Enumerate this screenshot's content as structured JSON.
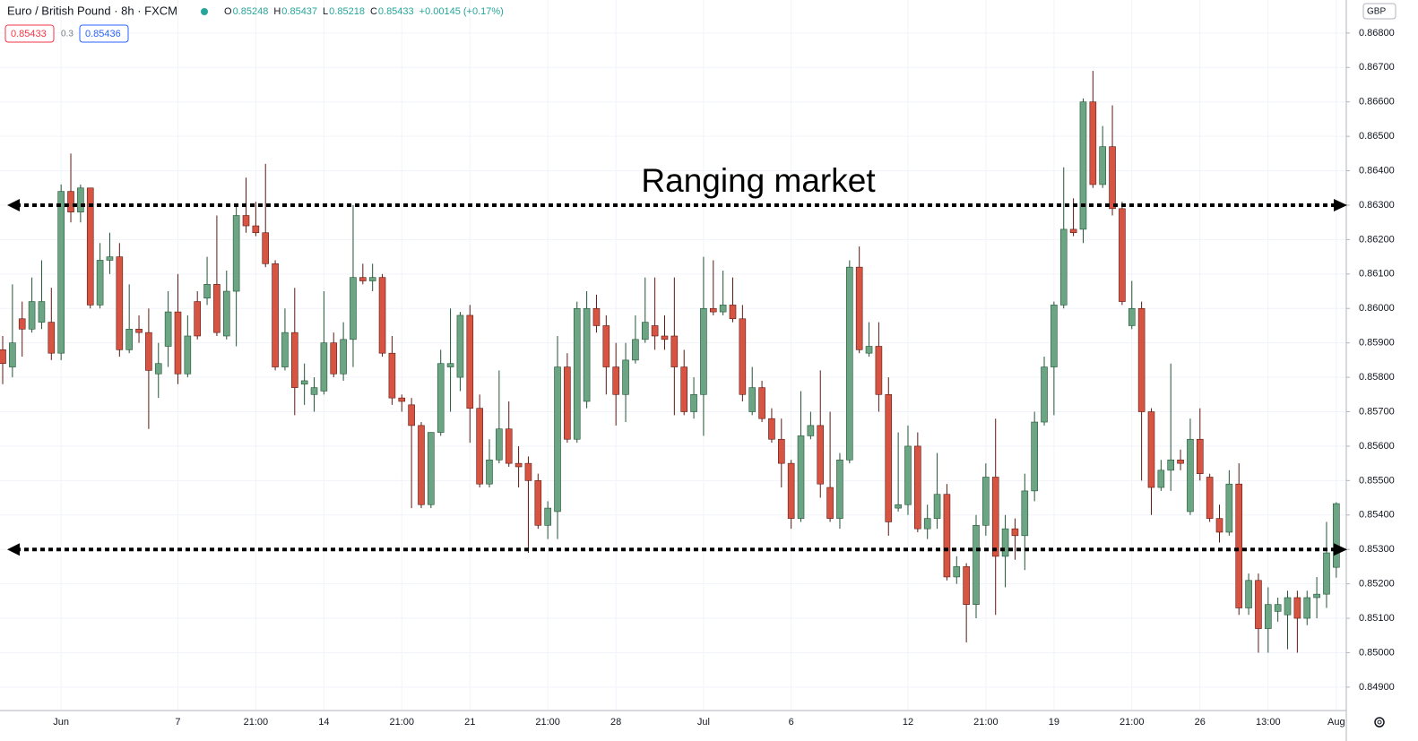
{
  "chart_data": {
    "type": "candlestick",
    "title": "Euro / British Pound · 8h · FXCM",
    "legend_labels": [
      "O",
      "H",
      "L",
      "C"
    ],
    "change": "+0.00145 (+0.17%)",
    "sell": 0.85433,
    "spread": 0.3,
    "buy": 0.85436,
    "currency": "GBP",
    "annotation": "Ranging market",
    "levels": [
      0.863,
      0.853
    ],
    "up_color": "#6ba583",
    "up_border": "#225437",
    "down_color": "#d75442",
    "down_border": "#5b1a13",
    "categories": [
      null,
      null,
      null,
      null,
      null,
      null,
      "Jun",
      null,
      null,
      null,
      null,
      null,
      null,
      null,
      null,
      null,
      null,
      null,
      "7",
      null,
      null,
      null,
      null,
      null,
      null,
      null,
      "21:00",
      null,
      null,
      null,
      null,
      null,
      null,
      "14",
      null,
      null,
      null,
      null,
      null,
      null,
      null,
      "21:00",
      null,
      null,
      null,
      null,
      null,
      null,
      "21",
      null,
      null,
      null,
      null,
      null,
      null,
      null,
      "21:00",
      null,
      null,
      null,
      null,
      null,
      null,
      "28",
      null,
      null,
      null,
      null,
      null,
      null,
      null,
      null,
      "Jul",
      null,
      null,
      null,
      null,
      null,
      null,
      null,
      null,
      "6",
      null,
      null,
      null,
      null,
      null,
      null,
      null,
      null,
      null,
      null,
      null,
      "12",
      null,
      null,
      null,
      null,
      null,
      null,
      null,
      "21:00",
      null,
      null,
      null,
      null,
      null,
      null,
      "19",
      null,
      null,
      null,
      null,
      null,
      null,
      null,
      "21:00",
      null,
      null,
      null,
      null,
      null,
      null,
      "26",
      null,
      null,
      null,
      null,
      null,
      null,
      "13:00",
      null,
      null,
      null,
      null,
      null,
      null,
      "Aug"
    ],
    "open": [
      0.8588,
      0.8583,
      0.8597,
      0.8594,
      0.8596,
      0.8596,
      0.8587,
      0.8634,
      0.8628,
      0.8635,
      0.8601,
      0.8614,
      0.8615,
      0.8588,
      0.8594,
      0.8593,
      0.8581,
      0.8589,
      0.8599,
      0.8581,
      0.8602,
      0.8603,
      0.8607,
      0.8592,
      0.8605,
      0.8627,
      0.8624,
      0.8622,
      0.8613,
      0.8583,
      0.8593,
      0.8578,
      0.8575,
      0.8576,
      0.859,
      0.8581,
      0.8591,
      0.8609,
      0.8608,
      0.8609,
      0.8587,
      0.8574,
      0.8572,
      0.8566,
      0.8543,
      0.8564,
      0.8583,
      0.858,
      0.8598,
      0.8571,
      0.8549,
      0.8556,
      0.8565,
      0.8555,
      0.8555,
      0.855,
      0.8537,
      0.8541,
      0.8583,
      0.8562,
      0.8573,
      0.86,
      0.8595,
      0.8583,
      0.8575,
      0.8585,
      0.8591,
      0.8595,
      0.8592,
      0.8592,
      0.8583,
      0.857,
      0.8575,
      0.86,
      0.8599,
      0.8601,
      0.8597,
      0.857,
      0.8577,
      0.8568,
      0.8562,
      0.8555,
      0.8539,
      0.8563,
      0.8566,
      0.8548,
      0.8539,
      0.8556,
      0.8612,
      0.8587,
      0.8589,
      0.8575,
      0.8542,
      0.8543,
      0.856,
      0.8536,
      0.8539,
      0.8546,
      0.8522,
      0.8525,
      0.8514,
      0.8537,
      0.8551,
      0.8528,
      0.8536,
      0.8534,
      0.8547,
      0.8567,
      0.8583,
      0.8601,
      0.8623,
      0.8623,
      0.866,
      0.8636,
      0.8647,
      0.8629,
      0.8595,
      0.86,
      0.857,
      0.8548,
      0.8553,
      0.8556,
      0.8541,
      0.8562,
      0.8551,
      0.8539,
      0.8535,
      0.8549,
      0.8513,
      0.8521,
      0.8507,
      0.8512,
      0.8511,
      0.8516,
      0.851,
      0.8516,
      0.8517,
      0.85248
    ],
    "high": [
      0.8592,
      0.8607,
      0.8602,
      0.8609,
      0.8614,
      0.8606,
      0.8636,
      0.8645,
      0.8636,
      0.8635,
      0.8619,
      0.8622,
      0.8619,
      0.8607,
      0.8598,
      0.86,
      0.859,
      0.8605,
      0.861,
      0.8598,
      0.8605,
      0.8615,
      0.8627,
      0.8611,
      0.863,
      0.8638,
      0.8631,
      0.8642,
      0.8614,
      0.86,
      0.8606,
      0.8584,
      0.858,
      0.8605,
      0.8593,
      0.8596,
      0.863,
      0.8613,
      0.8613,
      0.861,
      0.8592,
      0.8575,
      0.8574,
      0.8567,
      0.8564,
      0.8588,
      0.86,
      0.8599,
      0.8601,
      0.8575,
      0.8562,
      0.8582,
      0.8573,
      0.856,
      0.8557,
      0.8552,
      0.8544,
      0.8592,
      0.8587,
      0.8602,
      0.8605,
      0.8604,
      0.8598,
      0.859,
      0.859,
      0.8598,
      0.8609,
      0.8609,
      0.8598,
      0.8609,
      0.8588,
      0.858,
      0.8615,
      0.8614,
      0.8611,
      0.8609,
      0.8601,
      0.8583,
      0.8579,
      0.8571,
      0.8568,
      0.8556,
      0.8576,
      0.857,
      0.8582,
      0.857,
      0.8558,
      0.8614,
      0.8618,
      0.8596,
      0.8596,
      0.858,
      0.8564,
      0.8566,
      0.8564,
      0.8543,
      0.8558,
      0.8549,
      0.8528,
      0.8526,
      0.854,
      0.8555,
      0.8568,
      0.854,
      0.8539,
      0.8552,
      0.857,
      0.8586,
      0.8602,
      0.8641,
      0.8632,
      0.8661,
      0.8669,
      0.8653,
      0.8659,
      0.8631,
      0.8608,
      0.8602,
      0.8571,
      0.8556,
      0.8584,
      0.8559,
      0.8568,
      0.8571,
      0.8552,
      0.8543,
      0.8553,
      0.8555,
      0.8523,
      0.8523,
      0.8519,
      0.8516,
      0.8518,
      0.8518,
      0.8518,
      0.8522,
      0.8538,
      0.85437
    ],
    "low": [
      0.8578,
      0.858,
      0.8586,
      0.8593,
      0.8594,
      0.8585,
      0.8585,
      0.8625,
      0.8625,
      0.86,
      0.86,
      0.861,
      0.8586,
      0.8587,
      0.859,
      0.8565,
      0.8574,
      0.8583,
      0.8578,
      0.858,
      0.8591,
      0.8601,
      0.8592,
      0.8591,
      0.8589,
      0.8622,
      0.8621,
      0.8612,
      0.8582,
      0.8582,
      0.8569,
      0.8572,
      0.857,
      0.8575,
      0.858,
      0.8579,
      0.8583,
      0.8607,
      0.8605,
      0.8586,
      0.8572,
      0.857,
      0.8542,
      0.8542,
      0.8542,
      0.8563,
      0.857,
      0.8576,
      0.8561,
      0.8548,
      0.8548,
      0.8555,
      0.8554,
      0.8548,
      0.8529,
      0.8536,
      0.8533,
      0.8533,
      0.8561,
      0.8561,
      0.8571,
      0.8593,
      0.8575,
      0.8566,
      0.8567,
      0.8584,
      0.859,
      0.8588,
      0.8588,
      0.8569,
      0.8569,
      0.8568,
      0.8563,
      0.8598,
      0.8598,
      0.8596,
      0.8573,
      0.8569,
      0.8567,
      0.8561,
      0.8548,
      0.8536,
      0.8538,
      0.8562,
      0.8545,
      0.8538,
      0.8536,
      0.8555,
      0.8587,
      0.8586,
      0.857,
      0.8534,
      0.8541,
      0.854,
      0.8535,
      0.8533,
      0.8536,
      0.8521,
      0.852,
      0.8503,
      0.851,
      0.8534,
      0.8511,
      0.8519,
      0.8527,
      0.8524,
      0.8544,
      0.8566,
      0.8569,
      0.86,
      0.8621,
      0.8619,
      0.8635,
      0.8635,
      0.8627,
      0.8601,
      0.8594,
      0.855,
      0.854,
      0.8547,
      0.8547,
      0.8553,
      0.854,
      0.855,
      0.8538,
      0.8532,
      0.8534,
      0.8511,
      0.8511,
      0.85,
      0.85,
      0.8509,
      0.8501,
      0.85,
      0.8508,
      0.851,
      0.8513,
      0.85218
    ],
    "close": [
      0.8584,
      0.859,
      0.8594,
      0.8602,
      0.8602,
      0.8587,
      0.8634,
      0.8628,
      0.8635,
      0.8601,
      0.8614,
      0.8615,
      0.8588,
      0.8594,
      0.8593,
      0.8582,
      0.8584,
      0.8599,
      0.8581,
      0.8592,
      0.8592,
      0.8607,
      0.8593,
      0.8605,
      0.8627,
      0.8624,
      0.8622,
      0.8613,
      0.8583,
      0.8593,
      0.8577,
      0.8579,
      0.8577,
      0.859,
      0.8581,
      0.8591,
      0.8609,
      0.8608,
      0.8609,
      0.8587,
      0.8574,
      0.8573,
      0.8566,
      0.8543,
      0.8564,
      0.8584,
      0.8584,
      0.8598,
      0.8571,
      0.8549,
      0.8556,
      0.8565,
      0.8555,
      0.8554,
      0.855,
      0.8537,
      0.8542,
      0.8583,
      0.8562,
      0.86,
      0.86,
      0.8595,
      0.8583,
      0.8575,
      0.8585,
      0.8591,
      0.8596,
      0.8592,
      0.8591,
      0.8583,
      0.857,
      0.8575,
      0.86,
      0.8599,
      0.8601,
      0.8597,
      0.8575,
      0.8577,
      0.8568,
      0.8562,
      0.8555,
      0.8539,
      0.8563,
      0.8566,
      0.8549,
      0.8539,
      0.8556,
      0.8612,
      0.8588,
      0.8589,
      0.8575,
      0.8538,
      0.8543,
      0.856,
      0.8536,
      0.8539,
      0.8546,
      0.8522,
      0.8525,
      0.8514,
      0.8537,
      0.8551,
      0.8528,
      0.8536,
      0.8534,
      0.8547,
      0.8567,
      0.8583,
      0.8601,
      0.8623,
      0.8622,
      0.866,
      0.8636,
      0.8647,
      0.8629,
      0.8602,
      0.86,
      0.857,
      0.8548,
      0.8553,
      0.8556,
      0.8555,
      0.8562,
      0.8552,
      0.8539,
      0.8535,
      0.8549,
      0.8513,
      0.8521,
      0.8507,
      0.8514,
      0.8514,
      0.8516,
      0.851,
      0.8516,
      0.8517,
      0.8529,
      0.85433
    ],
    "ylim": [
      0.84832,
      0.86896
    ],
    "yticks": [
      {
        "value": 0.849,
        "label": "0.84900"
      },
      {
        "value": 0.85,
        "label": "0.85000"
      },
      {
        "value": 0.851,
        "label": "0.85100"
      },
      {
        "value": 0.852,
        "label": "0.85200"
      },
      {
        "value": 0.853,
        "label": "0.85300"
      },
      {
        "value": 0.854,
        "label": "0.85400"
      },
      {
        "value": 0.855,
        "label": "0.85500"
      },
      {
        "value": 0.856,
        "label": "0.85600"
      },
      {
        "value": 0.857,
        "label": "0.85700"
      },
      {
        "value": 0.858,
        "label": "0.85800"
      },
      {
        "value": 0.859,
        "label": "0.85900"
      },
      {
        "value": 0.86,
        "label": "0.86000"
      },
      {
        "value": 0.861,
        "label": "0.86100"
      },
      {
        "value": 0.862,
        "label": "0.86200"
      },
      {
        "value": 0.863,
        "label": "0.86300"
      },
      {
        "value": 0.864,
        "label": "0.86400"
      },
      {
        "value": 0.865,
        "label": "0.86500"
      },
      {
        "value": 0.866,
        "label": "0.86600"
      },
      {
        "value": 0.867,
        "label": "0.86700"
      },
      {
        "value": 0.868,
        "label": "0.86800"
      }
    ],
    "grid": true
  }
}
